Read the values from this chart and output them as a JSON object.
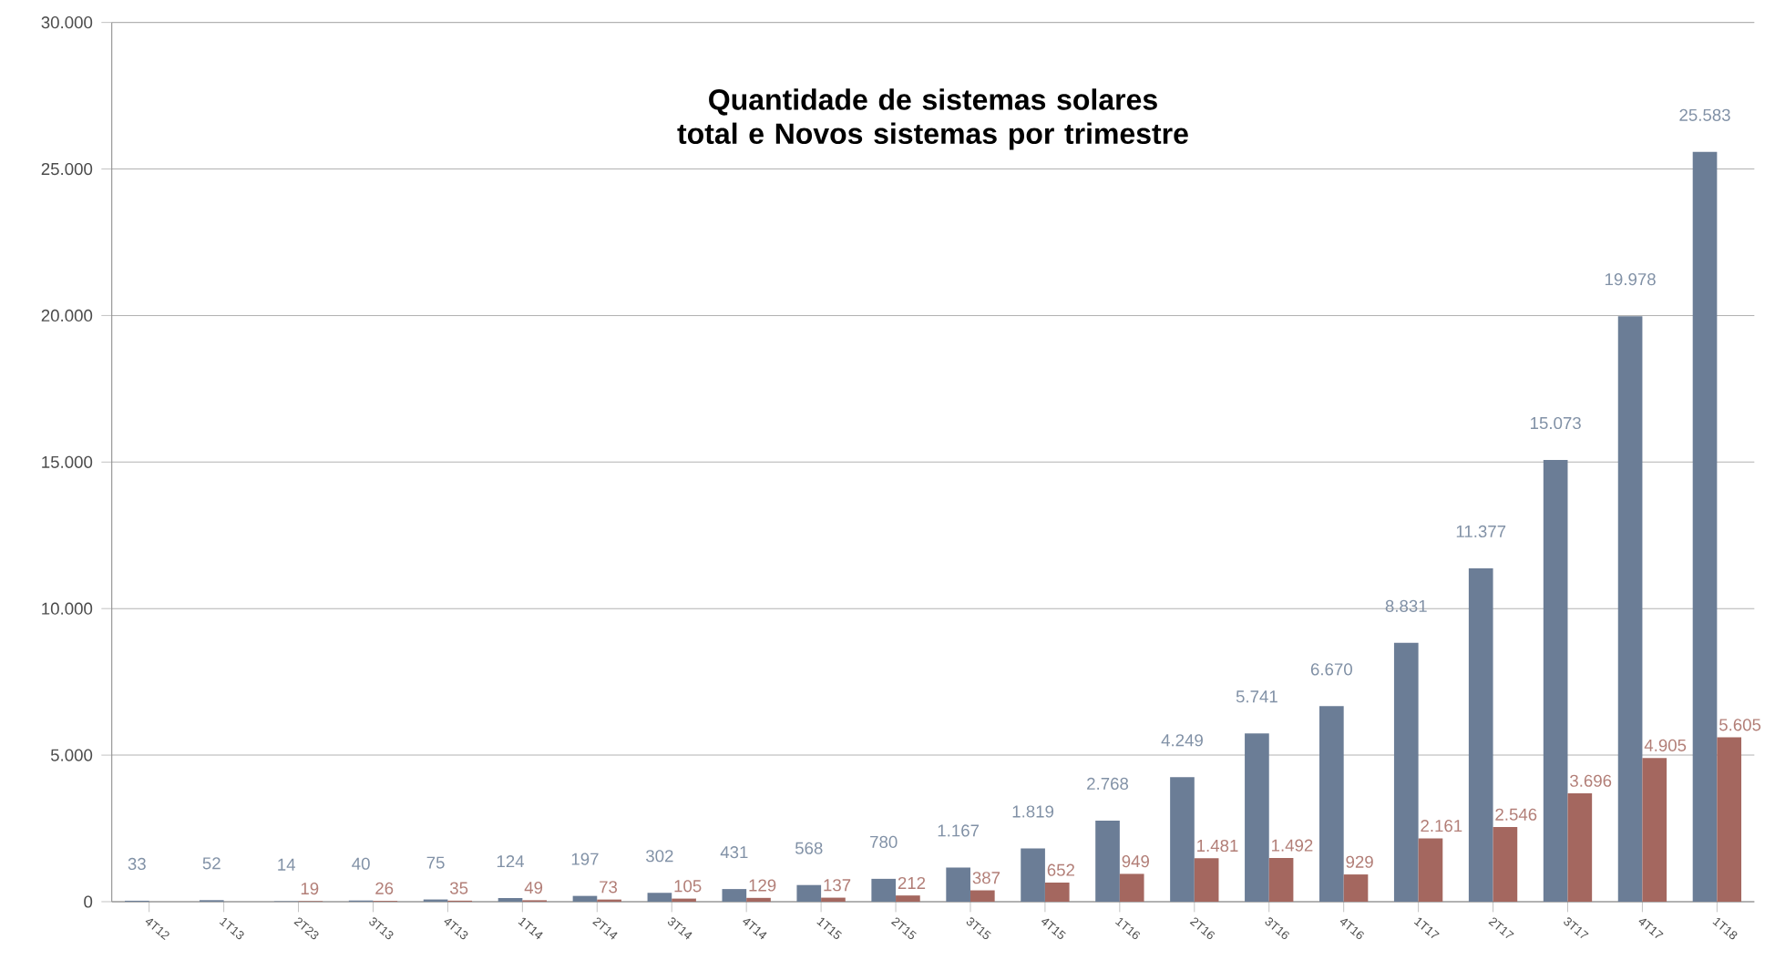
{
  "chart_data": {
    "type": "bar",
    "title": "Quantidade de sistemas solares total e Novos sistemas por trimestre",
    "categories": [
      "4T12",
      "1T13",
      "2T23",
      "3T13",
      "4T13",
      "1T14",
      "2T14",
      "3T14",
      "4T14",
      "1T15",
      "2T15",
      "3T15",
      "4T15",
      "1T16",
      "2T16",
      "3T16",
      "4T16",
      "1T17",
      "2T17",
      "3T17",
      "4T17",
      "1T18"
    ],
    "series": [
      {
        "color": "#6b7d96",
        "values": [
          33,
          52,
          14,
          40,
          75,
          124,
          197,
          302,
          431,
          568,
          780,
          1167,
          1819,
          2768,
          4249,
          5741,
          6670,
          8831,
          11377,
          15073,
          19978,
          25583
        ],
        "value_labels": [
          "33",
          "52",
          "14",
          "40",
          "75",
          "124",
          "197",
          "302",
          "431",
          "568",
          "780",
          "1.167",
          "1.819",
          "2.768",
          "4.249",
          "5.741",
          "6.670",
          "8.831",
          "11.377",
          "15.073",
          "19.978",
          "25.583"
        ]
      },
      {
        "color": "#a4675f",
        "values": [
          null,
          null,
          19,
          26,
          35,
          49,
          73,
          105,
          129,
          137,
          212,
          387,
          652,
          949,
          1481,
          1492,
          929,
          2161,
          2546,
          3696,
          4905,
          5605
        ],
        "value_labels": [
          null,
          null,
          "19",
          "26",
          "35",
          "49",
          "73",
          "105",
          "129",
          "137",
          "212",
          "387",
          "652",
          "949",
          "1.481",
          "1.492",
          "929",
          "2.161",
          "2.546",
          "3.696",
          "4.905",
          "5.605"
        ]
      }
    ],
    "ylim": [
      0,
      30000
    ],
    "yticks": [
      {
        "value": 0,
        "label": "0"
      },
      {
        "value": 5000,
        "label": "5.000"
      },
      {
        "value": 10000,
        "label": "10.000"
      },
      {
        "value": 15000,
        "label": "15.000"
      },
      {
        "value": 20000,
        "label": "20.000"
      },
      {
        "value": 25000,
        "label": "25.000"
      },
      {
        "value": 30000,
        "label": "30.000"
      }
    ],
    "grid": "y"
  }
}
